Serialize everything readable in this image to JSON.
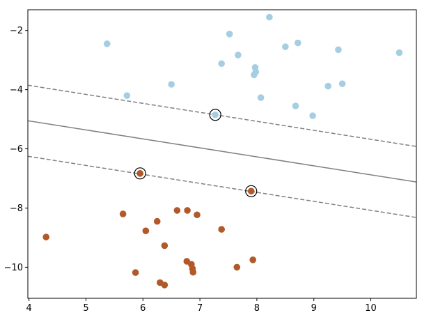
{
  "chart_data": {
    "type": "scatter",
    "title": "",
    "xlabel": "",
    "ylabel": "",
    "xlim": [
      3.98,
      10.8
    ],
    "ylim": [
      -11.05,
      -1.3
    ],
    "xticks": [
      4,
      5,
      6,
      7,
      8,
      9,
      10
    ],
    "yticks": [
      -2,
      -4,
      -6,
      -8,
      -10
    ],
    "xtick_labels": [
      "4",
      "5",
      "6",
      "7",
      "8",
      "9",
      "10"
    ],
    "ytick_labels": [
      "−2",
      "−4",
      "−6",
      "−8",
      "−10"
    ],
    "grid": false,
    "legend": "none",
    "series": [
      {
        "color": "#a6cee3",
        "points": [
          [
            5.37,
            -2.45
          ],
          [
            5.72,
            -4.2
          ],
          [
            6.5,
            -3.82
          ],
          [
            7.27,
            -4.85
          ],
          [
            7.38,
            -3.12
          ],
          [
            7.52,
            -2.12
          ],
          [
            7.67,
            -2.83
          ],
          [
            7.95,
            -3.5
          ],
          [
            7.97,
            -3.25
          ],
          [
            7.98,
            -3.4
          ],
          [
            8.07,
            -4.27
          ],
          [
            8.22,
            -1.55
          ],
          [
            8.5,
            -2.55
          ],
          [
            8.68,
            -4.55
          ],
          [
            8.72,
            -2.42
          ],
          [
            8.98,
            -4.88
          ],
          [
            9.25,
            -3.88
          ],
          [
            9.43,
            -2.65
          ],
          [
            9.5,
            -3.8
          ],
          [
            10.5,
            -2.75
          ]
        ]
      },
      {
        "color": "#b15928",
        "points": [
          [
            4.3,
            -8.98
          ],
          [
            5.65,
            -8.2
          ],
          [
            5.87,
            -10.18
          ],
          [
            5.95,
            -6.83
          ],
          [
            6.05,
            -8.77
          ],
          [
            6.25,
            -8.45
          ],
          [
            6.3,
            -10.52
          ],
          [
            6.38,
            -9.27
          ],
          [
            6.38,
            -10.6
          ],
          [
            6.6,
            -8.08
          ],
          [
            6.77,
            -9.8
          ],
          [
            6.78,
            -8.08
          ],
          [
            6.85,
            -9.9
          ],
          [
            6.87,
            -10.05
          ],
          [
            6.88,
            -10.17
          ],
          [
            6.95,
            -8.23
          ],
          [
            7.38,
            -8.72
          ],
          [
            7.65,
            -10.0
          ],
          [
            7.9,
            -7.43
          ],
          [
            7.93,
            -9.75
          ]
        ]
      }
    ],
    "support_vectors": [
      [
        5.95,
        -6.83
      ],
      [
        7.27,
        -4.85
      ],
      [
        7.9,
        -7.43
      ]
    ],
    "lines": [
      {
        "style": "solid",
        "color": "#808080",
        "x": [
          3.98,
          10.8
        ],
        "y": [
          -5.05,
          -7.12
        ]
      },
      {
        "style": "dashed",
        "color": "#808080",
        "x": [
          3.98,
          10.8
        ],
        "y": [
          -3.85,
          -5.92
        ]
      },
      {
        "style": "dashed",
        "color": "#808080",
        "x": [
          3.98,
          10.8
        ],
        "y": [
          -6.25,
          -8.32
        ]
      }
    ]
  }
}
